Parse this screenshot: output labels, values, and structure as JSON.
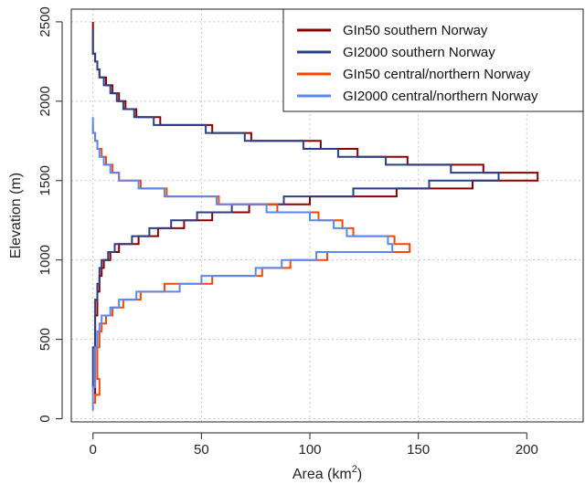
{
  "chart_data": {
    "type": "line",
    "xlabel": "Area (km",
    "xlabel_sup": "2",
    "xlabel_close": ")",
    "ylabel": "Elevation (m)",
    "xlim": [
      -10,
      226
    ],
    "ylim": [
      -20,
      2580
    ],
    "xticks": [
      0,
      50,
      100,
      150,
      200
    ],
    "yticks": [
      0,
      500,
      1000,
      1500,
      2000,
      2500
    ],
    "grid": true,
    "legend_position": "top-right",
    "series": [
      {
        "name": "GIn50 southern Norway",
        "color": "#8b0000",
        "points": [
          [
            0,
            2500
          ],
          [
            0,
            2400
          ],
          [
            1,
            2300
          ],
          [
            2,
            2250
          ],
          [
            3,
            2200
          ],
          [
            6,
            2150
          ],
          [
            9,
            2100
          ],
          [
            12,
            2050
          ],
          [
            15,
            2000
          ],
          [
            20,
            1950
          ],
          [
            31,
            1900
          ],
          [
            55,
            1850
          ],
          [
            73,
            1800
          ],
          [
            105,
            1750
          ],
          [
            122,
            1700
          ],
          [
            145,
            1650
          ],
          [
            180,
            1600
          ],
          [
            205,
            1550
          ],
          [
            175,
            1500
          ],
          [
            140,
            1450
          ],
          [
            100,
            1400
          ],
          [
            72,
            1350
          ],
          [
            55,
            1300
          ],
          [
            42,
            1250
          ],
          [
            30,
            1200
          ],
          [
            21,
            1150
          ],
          [
            12,
            1100
          ],
          [
            8,
            1050
          ],
          [
            5,
            1000
          ],
          [
            4,
            950
          ],
          [
            3,
            900
          ],
          [
            3,
            850
          ],
          [
            2,
            800
          ],
          [
            2,
            750
          ],
          [
            2,
            700
          ],
          [
            1,
            650
          ],
          [
            1,
            600
          ],
          [
            1,
            550
          ],
          [
            1,
            500
          ],
          [
            1,
            450
          ],
          [
            1,
            400
          ],
          [
            1,
            350
          ],
          [
            1,
            300
          ],
          [
            1,
            250
          ],
          [
            1,
            200
          ],
          [
            1,
            150
          ]
        ]
      },
      {
        "name": "GI2000 southern Norway",
        "color": "#2a3f85",
        "points": [
          [
            0,
            2450
          ],
          [
            0,
            2400
          ],
          [
            1,
            2300
          ],
          [
            2,
            2250
          ],
          [
            3,
            2200
          ],
          [
            5,
            2150
          ],
          [
            8,
            2100
          ],
          [
            11,
            2050
          ],
          [
            14,
            2000
          ],
          [
            19,
            1950
          ],
          [
            28,
            1900
          ],
          [
            52,
            1850
          ],
          [
            70,
            1800
          ],
          [
            97,
            1750
          ],
          [
            113,
            1700
          ],
          [
            135,
            1650
          ],
          [
            165,
            1600
          ],
          [
            187,
            1550
          ],
          [
            155,
            1500
          ],
          [
            120,
            1450
          ],
          [
            88,
            1400
          ],
          [
            64,
            1350
          ],
          [
            48,
            1300
          ],
          [
            36,
            1250
          ],
          [
            26,
            1200
          ],
          [
            18,
            1150
          ],
          [
            10,
            1100
          ],
          [
            7,
            1050
          ],
          [
            4,
            1000
          ],
          [
            3,
            950
          ],
          [
            3,
            900
          ],
          [
            2,
            850
          ],
          [
            2,
            800
          ],
          [
            1,
            750
          ],
          [
            1,
            700
          ],
          [
            1,
            650
          ],
          [
            1,
            600
          ],
          [
            1,
            550
          ],
          [
            1,
            500
          ],
          [
            0,
            450
          ],
          [
            0,
            400
          ],
          [
            0,
            350
          ],
          [
            0,
            300
          ],
          [
            0,
            250
          ],
          [
            0,
            200
          ]
        ]
      },
      {
        "name": "GIn50 central/northern Norway",
        "color": "#ff4500",
        "points": [
          [
            0,
            1850
          ],
          [
            1,
            1800
          ],
          [
            2,
            1750
          ],
          [
            4,
            1700
          ],
          [
            6,
            1650
          ],
          [
            9,
            1600
          ],
          [
            12,
            1550
          ],
          [
            22,
            1500
          ],
          [
            34,
            1450
          ],
          [
            58,
            1400
          ],
          [
            85,
            1350
          ],
          [
            104,
            1300
          ],
          [
            115,
            1250
          ],
          [
            120,
            1200
          ],
          [
            139,
            1150
          ],
          [
            146,
            1100
          ],
          [
            108,
            1050
          ],
          [
            91,
            1000
          ],
          [
            78,
            950
          ],
          [
            55,
            900
          ],
          [
            33,
            850
          ],
          [
            22,
            800
          ],
          [
            14,
            750
          ],
          [
            9,
            700
          ],
          [
            6,
            650
          ],
          [
            4,
            600
          ],
          [
            3,
            550
          ],
          [
            3,
            500
          ],
          [
            2,
            450
          ],
          [
            2,
            400
          ],
          [
            2,
            350
          ],
          [
            2,
            300
          ],
          [
            3,
            250
          ],
          [
            3,
            200
          ],
          [
            1,
            150
          ],
          [
            0,
            100
          ]
        ]
      },
      {
        "name": "GI2000 central/northern Norway",
        "color": "#5a87f0",
        "points": [
          [
            0,
            1900
          ],
          [
            1,
            1800
          ],
          [
            2,
            1750
          ],
          [
            3,
            1700
          ],
          [
            5,
            1650
          ],
          [
            8,
            1600
          ],
          [
            12,
            1550
          ],
          [
            21,
            1500
          ],
          [
            33,
            1450
          ],
          [
            57,
            1400
          ],
          [
            80,
            1350
          ],
          [
            100,
            1300
          ],
          [
            111,
            1250
          ],
          [
            117,
            1200
          ],
          [
            136,
            1150
          ],
          [
            138,
            1100
          ],
          [
            103,
            1050
          ],
          [
            87,
            1000
          ],
          [
            75,
            950
          ],
          [
            50,
            900
          ],
          [
            40,
            850
          ],
          [
            20,
            800
          ],
          [
            12,
            750
          ],
          [
            8,
            700
          ],
          [
            4,
            650
          ],
          [
            3,
            600
          ],
          [
            2,
            550
          ],
          [
            2,
            500
          ],
          [
            1,
            450
          ],
          [
            1,
            400
          ],
          [
            1,
            350
          ],
          [
            1,
            300
          ],
          [
            1,
            250
          ],
          [
            0,
            200
          ],
          [
            0,
            150
          ],
          [
            0,
            100
          ],
          [
            0,
            50
          ]
        ]
      }
    ]
  }
}
